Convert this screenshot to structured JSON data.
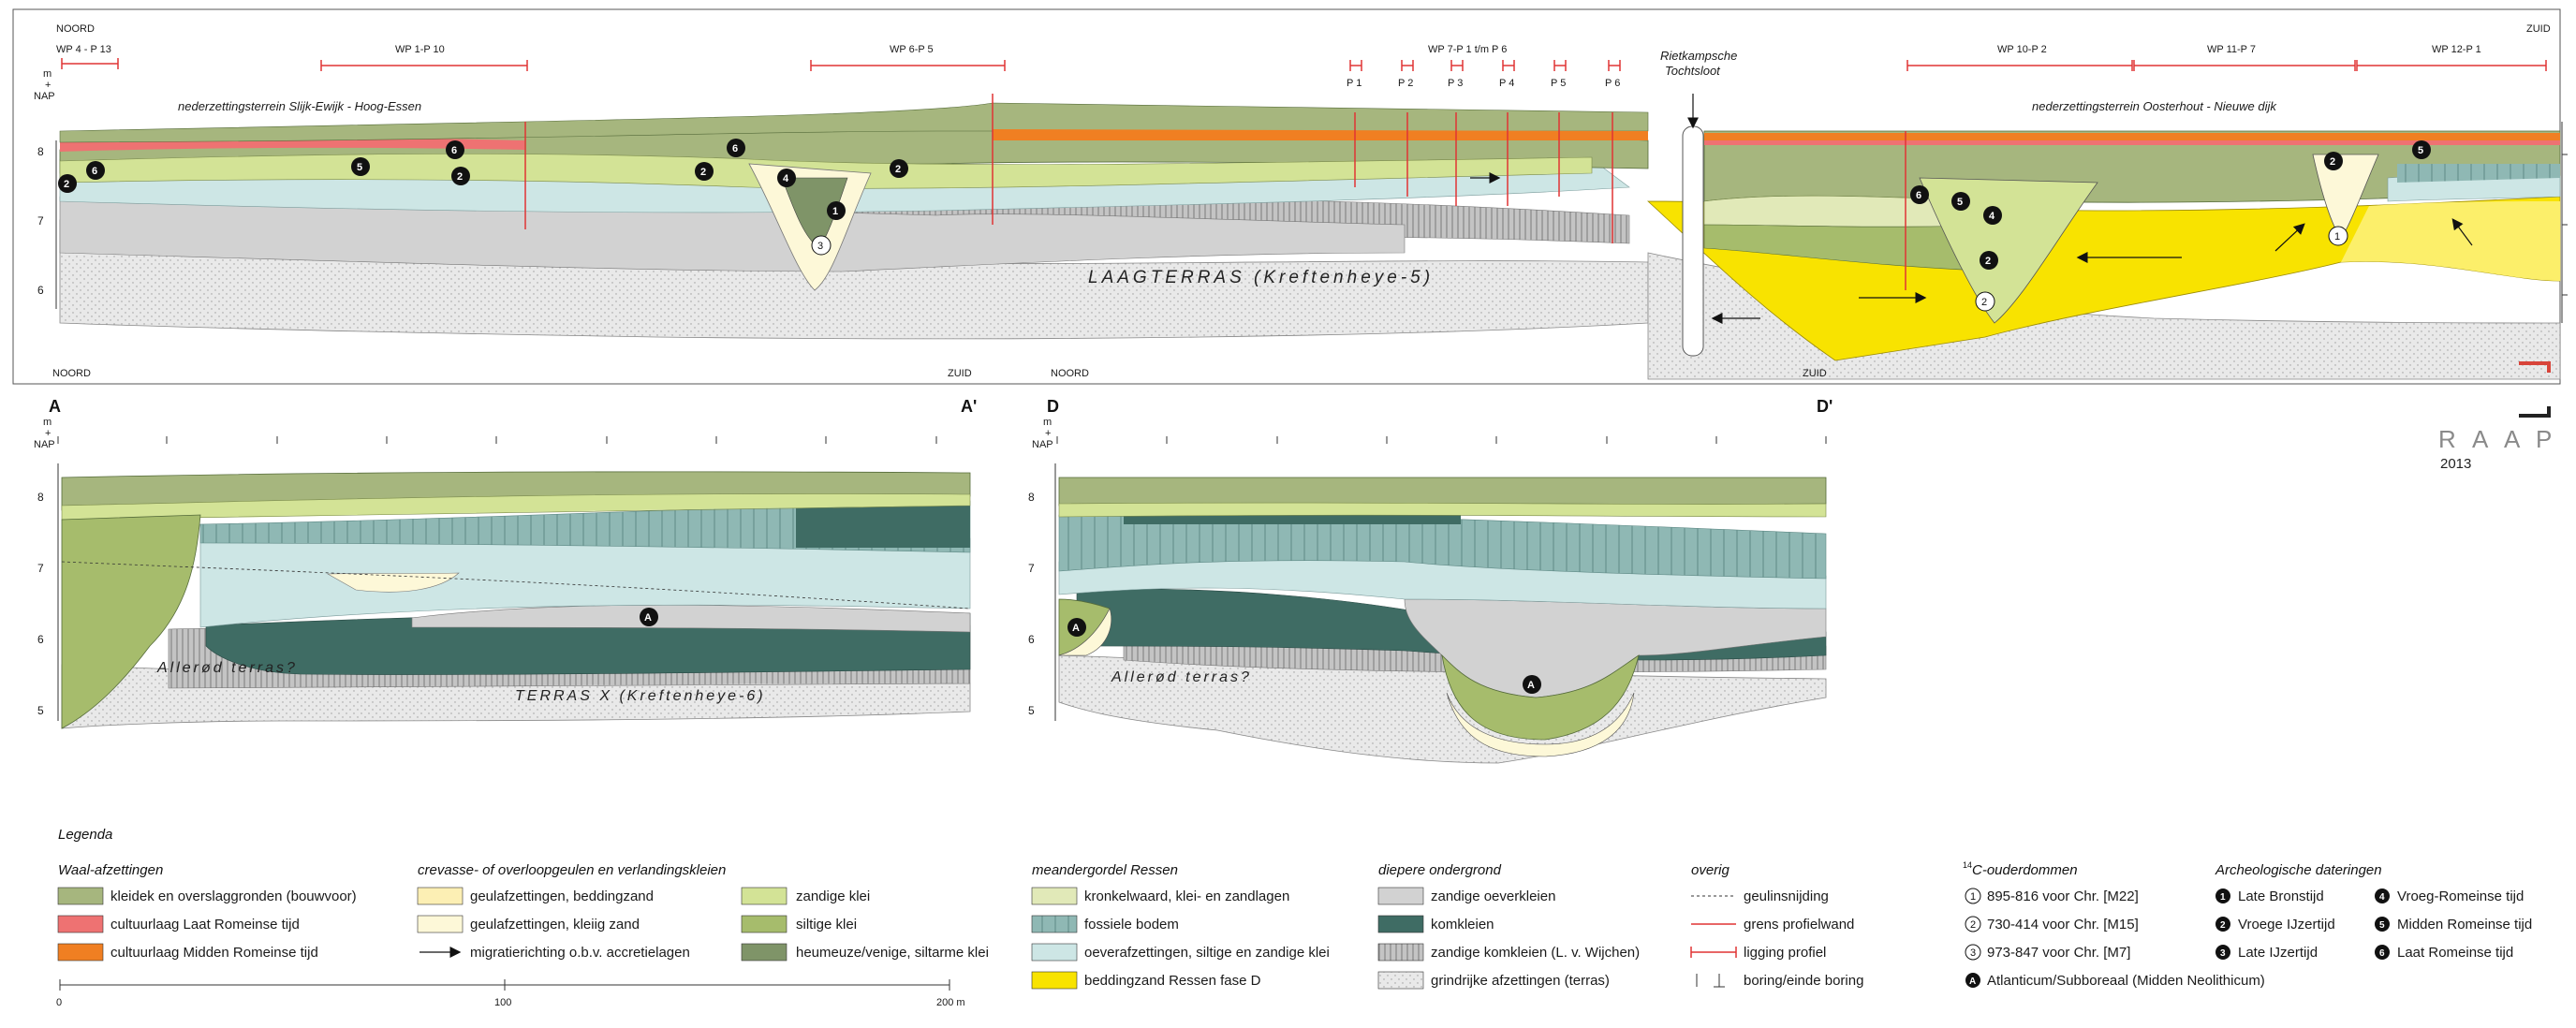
{
  "top": {
    "noord": "NOORD",
    "zuid": "ZUID",
    "axis_unit": [
      "m",
      "+",
      "NAP"
    ],
    "y_ticks": [
      "8",
      "7",
      "6"
    ],
    "profiles": [
      {
        "label": "WP 4 - P 13"
      },
      {
        "label": "WP 1-P 10"
      },
      {
        "label": "WP 6-P 5"
      },
      {
        "label": "WP 7-P 1 t/m P 6"
      },
      {
        "label": "WP 10-P 2"
      },
      {
        "label": "WP 11-P 7"
      },
      {
        "label": "WP 12-P 1"
      }
    ],
    "small_profiles": [
      "P 1",
      "P 2",
      "P 3",
      "P 4",
      "P 5",
      "P 6"
    ],
    "site_north": "nederzettingsterrein Slijk-Ewijk - Hoog-Essen",
    "site_south": "nederzettingsterrein Oosterhout - Nieuwe dijk",
    "ditch_line1": "Rietkampsche",
    "ditch_line2": "Tochtsloot",
    "laagterras": "LAAGTERRAS (Kreftenheye-5)"
  },
  "raap": {
    "letters": [
      "R",
      "A",
      "A",
      "P"
    ],
    "year": "2013"
  },
  "section_a": {
    "noord": "NOORD",
    "zuid": "ZUID",
    "left_letter": "A",
    "right_letter": "A'",
    "axis_unit": [
      "m",
      "+",
      "NAP"
    ],
    "y_ticks": [
      "8",
      "7",
      "6",
      "5"
    ],
    "allerod": "Allerød terras?",
    "terras_x": "TERRAS X (Kreftenheye-6)"
  },
  "section_d": {
    "noord": "NOORD",
    "zuid": "ZUID",
    "left_letter": "D",
    "right_letter": "D'",
    "axis_unit": [
      "m",
      "+",
      "NAP"
    ],
    "y_ticks": [
      "8",
      "7",
      "6",
      "5"
    ],
    "allerod": "Allerød terras?"
  },
  "legend": {
    "title": "Legenda",
    "groups": [
      {
        "title": "Waal-afzettingen",
        "items": [
          {
            "label": "kleidek en overslaggronden (bouwvoor)",
            "color": "#a6b67e"
          },
          {
            "label": "cultuurlaag Laat Romeinse tijd",
            "color": "#ee7272"
          },
          {
            "label": "cultuurlaag Midden Romeinse tijd",
            "color": "#f07f22"
          }
        ]
      },
      {
        "title": "crevasse- of overloopgeulen en verlandingskleien",
        "items": [
          {
            "label": "geulafzettingen, beddingzand",
            "color": "#fcefb4"
          },
          {
            "label": "geulafzettingen, kleiig zand",
            "color": "#fdf8d8"
          },
          {
            "label": "migratierichting o.b.v. accretielagen",
            "color": "arrow"
          },
          {
            "label": "zandige klei",
            "color": "#d3e396"
          },
          {
            "label": "siltige klei",
            "color": "#a6bc6c"
          },
          {
            "label": "heumeuze/venige, siltarme klei",
            "color": "#7f9468"
          }
        ]
      },
      {
        "title": "meandergordel Ressen",
        "items": [
          {
            "label": "kronkelwaard, klei- en zandlagen",
            "color": "#e1e9b8"
          },
          {
            "label": "fossiele bodem",
            "color": "#8fb8b4"
          },
          {
            "label": "oeverafzettingen, siltige en zandige klei",
            "color": "#cde6e5"
          },
          {
            "label": "beddingzand Ressen fase D",
            "color": "#f8e300"
          }
        ]
      },
      {
        "title": "diepere ondergrond",
        "items": [
          {
            "label": "zandige oeverkleien",
            "color": "#d2d2d2"
          },
          {
            "label": "komkleien",
            "color": "#3f6c64"
          },
          {
            "label": "zandige komkleien (L. v. Wijchen)",
            "color": "#c4c4c4"
          },
          {
            "label": "grindrijke afzettingen (terras)",
            "color": "#e9e9e9"
          }
        ]
      },
      {
        "title": "overig",
        "items": [
          {
            "label": "geulinsnijding"
          },
          {
            "label": "grens profielwand"
          },
          {
            "label": "ligging profiel"
          },
          {
            "label": "boring/einde boring"
          }
        ]
      }
    ],
    "c14": {
      "title_sup": "14",
      "title": "C-ouderdommen",
      "items": [
        {
          "num": "1",
          "label": "895-816 voor Chr. [M22]"
        },
        {
          "num": "2",
          "label": "730-414 voor Chr. [M15]"
        },
        {
          "num": "3",
          "label": "973-847 voor Chr. [M7]"
        }
      ],
      "extra_num": "A",
      "extra": "Atlanticum/Subboreaal (Midden Neolithicum)"
    },
    "archeo": {
      "title": "Archeologische dateringen",
      "items": [
        {
          "num": "1",
          "label": "Late Bronstijd"
        },
        {
          "num": "2",
          "label": "Vroege IJzertijd"
        },
        {
          "num": "3",
          "label": "Late IJzertijd"
        },
        {
          "num": "4",
          "label": "Vroeg-Romeinse tijd"
        },
        {
          "num": "5",
          "label": "Midden Romeinse tijd"
        },
        {
          "num": "6",
          "label": "Laat Romeinse tijd"
        }
      ]
    }
  },
  "scalebar": {
    "ticks": [
      "0",
      "100",
      "200 m"
    ]
  }
}
